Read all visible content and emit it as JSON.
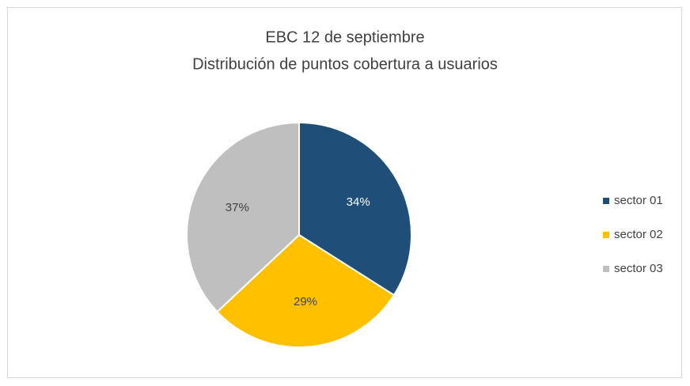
{
  "chart_data": {
    "type": "pie",
    "title": [
      "EBC 12 de septiembre",
      "Distribución de puntos cobertura a usuarios"
    ],
    "categories": [
      "sector 01",
      "sector 02",
      "sector 03"
    ],
    "values": [
      34,
      29,
      37
    ],
    "value_labels": [
      "34%",
      "29%",
      "37%"
    ],
    "colors": [
      "#1f4e79",
      "#ffc000",
      "#bfbfbf"
    ],
    "legend": "right"
  }
}
